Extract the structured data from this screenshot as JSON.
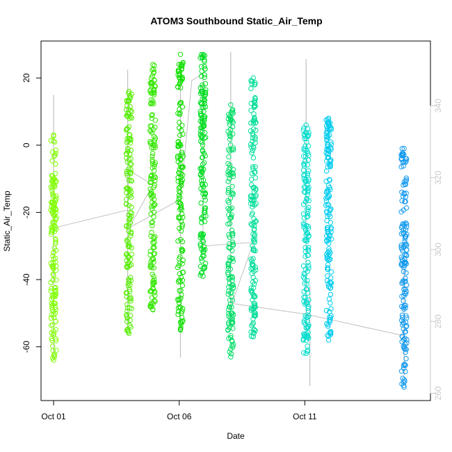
{
  "chart_data": {
    "type": "scatter",
    "title": "ATOM3 Southbound Static_Air_Temp",
    "xlabel": "Date",
    "ylabel": "Static_Air_Temp",
    "x_ticks": [
      "Oct 01",
      "Oct 06",
      "Oct 11"
    ],
    "x_tick_days": [
      1,
      6,
      11
    ],
    "xlim_days": [
      0.5,
      16.0
    ],
    "y_ticks": [
      -60,
      -40,
      -20,
      0,
      20
    ],
    "ylim": [
      -76,
      31
    ],
    "y2_ticks": [
      260,
      280,
      300,
      320,
      340
    ],
    "y2lim": [
      258,
      358
    ],
    "grid": false,
    "point_style": "open-circle",
    "bursts": [
      {
        "day": 1.0,
        "ymin": -64,
        "ymax": 3,
        "color": "#7fff00"
      },
      {
        "day": 4.0,
        "ymin": -56,
        "ymax": 16,
        "color": "#55ee00"
      },
      {
        "day": 4.95,
        "ymin": -49,
        "ymax": 24,
        "color": "#33e600"
      },
      {
        "day": 6.05,
        "ymin": -55,
        "ymax": 27,
        "color": "#11e000"
      },
      {
        "day": 6.95,
        "ymin": -39,
        "ymax": 27,
        "color": "#00dd22"
      },
      {
        "day": 8.05,
        "ymin": -63,
        "ymax": 12,
        "color": "#00dd66"
      },
      {
        "day": 8.95,
        "ymin": -57,
        "ymax": 20,
        "color": "#00dd99"
      },
      {
        "day": 11.05,
        "ymin": -62,
        "ymax": 6,
        "color": "#00ddcc"
      },
      {
        "day": 11.95,
        "ymin": -58,
        "ymax": 8,
        "color": "#00ccee"
      },
      {
        "day": 14.95,
        "ymin": -72,
        "ymax": -1,
        "color": "#1199ee"
      }
    ],
    "gray_line": {
      "color": "#c0c0c0",
      "spikes": [
        {
          "day": 1.0,
          "y2min": 270,
          "y2max": 343
        },
        {
          "day": 3.95,
          "y2min": 278,
          "y2max": 350
        },
        {
          "day": 6.05,
          "y2min": 270,
          "y2max": 350
        },
        {
          "day": 8.05,
          "y2min": 280,
          "y2max": 355
        },
        {
          "day": 11.05,
          "y2min": 275,
          "y2max": 353
        },
        {
          "day": 11.2,
          "y2min": 262,
          "y2max": 290
        },
        {
          "day": 14.95,
          "y2min": 265,
          "y2max": 295
        }
      ],
      "links": [
        {
          "x": 1.0,
          "y2": 306
        },
        {
          "x": 3.95,
          "y2": 311
        },
        {
          "x": 4.0,
          "y2": 322
        },
        {
          "x": 4.95,
          "y2": 318
        },
        {
          "x": 4.0,
          "y2": 306
        },
        {
          "x": 6.05,
          "y2": 314
        },
        {
          "x": 6.5,
          "y2": 347
        },
        {
          "x": 6.95,
          "y2": 349
        },
        {
          "x": 6.95,
          "y2": 301
        },
        {
          "x": 8.95,
          "y2": 302
        },
        {
          "x": 8.1,
          "y2": 285
        },
        {
          "x": 11.05,
          "y2": 282
        },
        {
          "x": 14.95,
          "y2": 276
        }
      ]
    }
  }
}
